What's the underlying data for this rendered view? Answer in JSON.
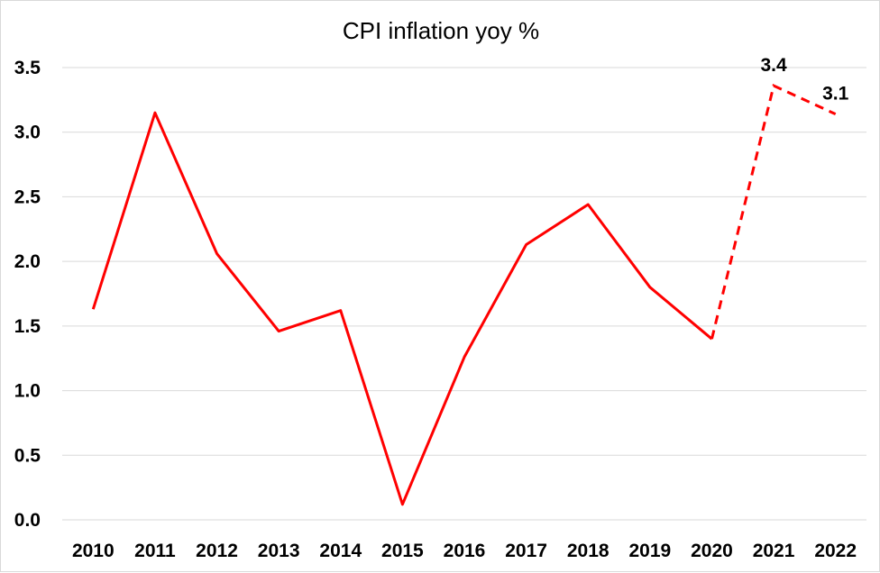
{
  "chart_data": {
    "type": "line",
    "title": "CPI inflation yoy %",
    "xlabel": "",
    "ylabel": "",
    "categories": [
      "2010",
      "2011",
      "2012",
      "2013",
      "2014",
      "2015",
      "2016",
      "2017",
      "2018",
      "2019",
      "2020",
      "2021",
      "2022"
    ],
    "series": [
      {
        "values": [
          1.63,
          3.15,
          2.06,
          1.46,
          1.62,
          0.12,
          1.26,
          2.13,
          2.44,
          1.8,
          1.4,
          3.36,
          3.14
        ],
        "color": "#ff0000",
        "forecast_from_index": 10
      }
    ],
    "data_labels": [
      {
        "index": 11,
        "text": "3.4"
      },
      {
        "index": 12,
        "text": "3.1"
      }
    ],
    "ylim": [
      0,
      3.5
    ],
    "yticks": [
      "0.0",
      "0.5",
      "1.0",
      "1.5",
      "2.0",
      "2.5",
      "3.0",
      "3.5"
    ],
    "grid": true,
    "legend": "none"
  }
}
